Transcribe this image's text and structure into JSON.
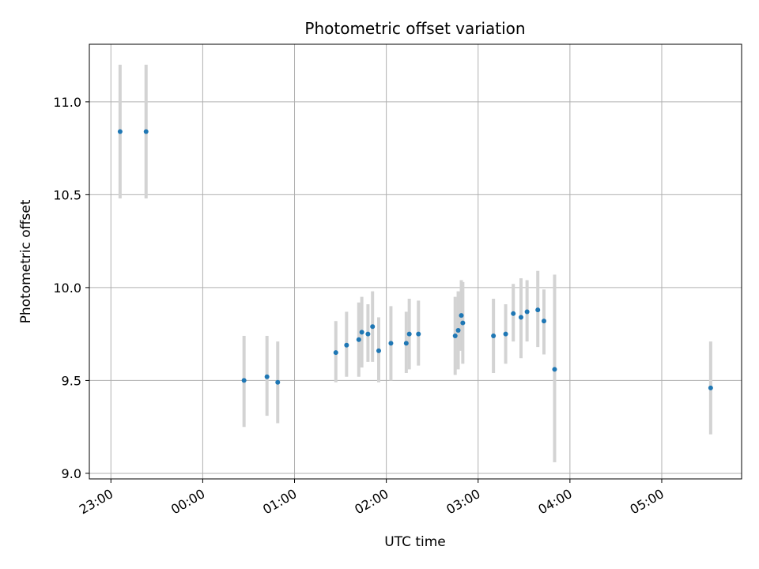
{
  "chart_data": {
    "type": "scatter",
    "title": "Photometric offset variation",
    "xlabel": "UTC time",
    "ylabel": "Photometric offset",
    "x_unit": "UTC time (hours past 00:00; negative = previous day)",
    "xlim": [
      -1.235,
      5.87
    ],
    "ylim": [
      8.97,
      11.31
    ],
    "x_ticks": [
      {
        "value": -1,
        "label": "23:00"
      },
      {
        "value": 0,
        "label": "00:00"
      },
      {
        "value": 1,
        "label": "01:00"
      },
      {
        "value": 2,
        "label": "02:00"
      },
      {
        "value": 3,
        "label": "03:00"
      },
      {
        "value": 4,
        "label": "04:00"
      },
      {
        "value": 5,
        "label": "05:00"
      }
    ],
    "y_ticks": [
      {
        "value": 9.0,
        "label": "9.0"
      },
      {
        "value": 9.5,
        "label": "9.5"
      },
      {
        "value": 10.0,
        "label": "10.0"
      },
      {
        "value": 10.5,
        "label": "10.5"
      },
      {
        "value": 11.0,
        "label": "11.0"
      }
    ],
    "grid": true,
    "colors": {
      "marker": "#1f77b4",
      "errorbar": "#d3d3d3",
      "grid": "#b0b0b0"
    },
    "points": [
      {
        "x": -0.9,
        "y": 10.84,
        "ylow": 10.48,
        "yhigh": 11.2
      },
      {
        "x": -0.617,
        "y": 10.84,
        "ylow": 10.48,
        "yhigh": 11.2
      },
      {
        "x": 0.45,
        "y": 9.5,
        "ylow": 9.25,
        "yhigh": 9.74
      },
      {
        "x": 0.7,
        "y": 9.52,
        "ylow": 9.31,
        "yhigh": 9.74
      },
      {
        "x": 0.817,
        "y": 9.49,
        "ylow": 9.27,
        "yhigh": 9.71
      },
      {
        "x": 1.45,
        "y": 9.65,
        "ylow": 9.49,
        "yhigh": 9.82
      },
      {
        "x": 1.567,
        "y": 9.69,
        "ylow": 9.52,
        "yhigh": 9.87
      },
      {
        "x": 1.7,
        "y": 9.72,
        "ylow": 9.52,
        "yhigh": 9.92
      },
      {
        "x": 1.733,
        "y": 9.76,
        "ylow": 9.57,
        "yhigh": 9.95
      },
      {
        "x": 1.8,
        "y": 9.75,
        "ylow": 9.6,
        "yhigh": 9.91
      },
      {
        "x": 1.85,
        "y": 9.79,
        "ylow": 9.6,
        "yhigh": 9.98
      },
      {
        "x": 1.917,
        "y": 9.66,
        "ylow": 9.49,
        "yhigh": 9.84
      },
      {
        "x": 2.05,
        "y": 9.7,
        "ylow": 9.5,
        "yhigh": 9.9
      },
      {
        "x": 2.217,
        "y": 9.7,
        "ylow": 9.54,
        "yhigh": 9.87
      },
      {
        "x": 2.25,
        "y": 9.75,
        "ylow": 9.56,
        "yhigh": 9.94
      },
      {
        "x": 2.35,
        "y": 9.75,
        "ylow": 9.58,
        "yhigh": 9.93
      },
      {
        "x": 2.75,
        "y": 9.74,
        "ylow": 9.53,
        "yhigh": 9.95
      },
      {
        "x": 2.783,
        "y": 9.77,
        "ylow": 9.56,
        "yhigh": 9.98
      },
      {
        "x": 2.817,
        "y": 9.85,
        "ylow": 9.66,
        "yhigh": 10.04
      },
      {
        "x": 2.833,
        "y": 9.81,
        "ylow": 9.59,
        "yhigh": 10.03
      },
      {
        "x": 3.167,
        "y": 9.74,
        "ylow": 9.54,
        "yhigh": 9.94
      },
      {
        "x": 3.3,
        "y": 9.75,
        "ylow": 9.59,
        "yhigh": 9.91
      },
      {
        "x": 3.383,
        "y": 9.86,
        "ylow": 9.71,
        "yhigh": 10.02
      },
      {
        "x": 3.467,
        "y": 9.84,
        "ylow": 9.62,
        "yhigh": 10.05
      },
      {
        "x": 3.533,
        "y": 9.87,
        "ylow": 9.71,
        "yhigh": 10.04
      },
      {
        "x": 3.65,
        "y": 9.88,
        "ylow": 9.68,
        "yhigh": 10.09
      },
      {
        "x": 3.717,
        "y": 9.82,
        "ylow": 9.64,
        "yhigh": 9.99
      },
      {
        "x": 3.833,
        "y": 9.56,
        "ylow": 9.06,
        "yhigh": 10.07
      },
      {
        "x": 5.533,
        "y": 9.46,
        "ylow": 9.21,
        "yhigh": 9.71
      }
    ]
  }
}
